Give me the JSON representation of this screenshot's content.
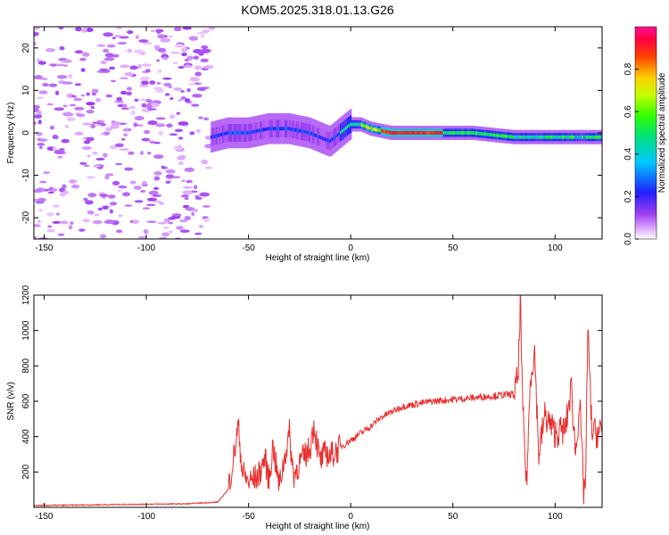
{
  "chart_data": [
    {
      "type": "heatmap",
      "title": "KOM5.2025.318.01.13.G26",
      "xlabel": "Height of straight line (km)",
      "ylabel": "Frequency (Hz)",
      "xlim": [
        -155,
        123
      ],
      "ylim": [
        -25,
        25
      ],
      "xticks": [
        -150,
        -100,
        -50,
        0,
        50,
        100
      ],
      "yticks": [
        -20,
        -10,
        0,
        10,
        20
      ],
      "colorbar": {
        "label": "Normalized spectral amplitude",
        "range": [
          0,
          1
        ],
        "ticks": [
          0.0,
          0.2,
          0.4,
          0.6,
          0.8
        ],
        "tick_labels": [
          "0.0",
          "0.2",
          "0.4",
          "0.6",
          "0.8"
        ]
      },
      "ridge": {
        "description": "dominant frequency track vs height",
        "x": [
          -68,
          -60,
          -50,
          -40,
          -30,
          -20,
          -15,
          -10,
          -5,
          0,
          5,
          10,
          20,
          40,
          60,
          80,
          90,
          100,
          110,
          123
        ],
        "freq": [
          -1,
          0,
          0,
          1,
          1,
          0,
          -1,
          -2,
          0,
          2,
          2,
          1,
          0,
          0,
          0,
          -1,
          -1,
          -1,
          -1,
          -1
        ]
      }
    },
    {
      "type": "line",
      "xlabel": "Height of straight line (km)",
      "ylabel": "SNR (v/v)",
      "xlim": [
        -155,
        123
      ],
      "ylim": [
        0,
        1200
      ],
      "xticks": [
        -150,
        -100,
        -50,
        0,
        50,
        100
      ],
      "yticks": [
        200,
        400,
        600,
        800,
        1000,
        1200
      ],
      "series": [
        {
          "name": "SNR",
          "color": "#e8302f",
          "x": [
            -155,
            -140,
            -120,
            -100,
            -80,
            -65,
            -60,
            -57,
            -55,
            -53,
            -50,
            -45,
            -42,
            -40,
            -38,
            -35,
            -32,
            -30,
            -28,
            -25,
            -20,
            -18,
            -15,
            -12,
            -10,
            -5,
            0,
            5,
            10,
            15,
            20,
            25,
            30,
            35,
            40,
            45,
            50,
            55,
            60,
            65,
            70,
            75,
            80,
            82,
            83,
            84,
            86,
            88,
            90,
            92,
            95,
            100,
            105,
            108,
            110,
            112,
            114,
            115,
            116,
            118,
            120,
            123
          ],
          "y": [
            10,
            12,
            15,
            18,
            20,
            30,
            100,
            300,
            460,
            200,
            140,
            180,
            280,
            150,
            350,
            120,
            300,
            420,
            180,
            250,
            330,
            470,
            260,
            310,
            290,
            340,
            380,
            420,
            460,
            510,
            540,
            570,
            580,
            590,
            600,
            605,
            610,
            615,
            620,
            625,
            630,
            635,
            640,
            750,
            1200,
            600,
            120,
            750,
            880,
            300,
            520,
            420,
            440,
            680,
            300,
            600,
            90,
            180,
            1010,
            430,
            420,
            430
          ]
        }
      ]
    }
  ]
}
